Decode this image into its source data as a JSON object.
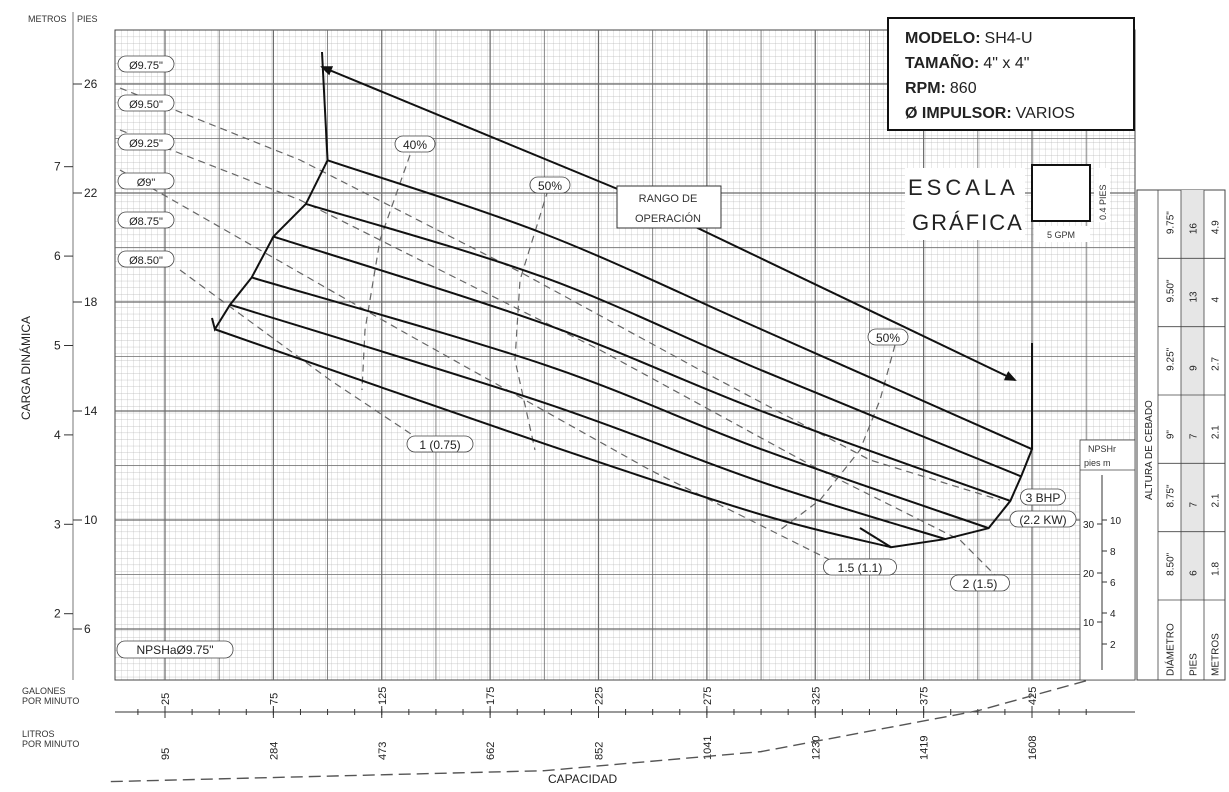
{
  "chart_data": {
    "type": "line",
    "axis": {
      "y_title": "CARGA DINÁMICA",
      "y_meters_header": "METROS",
      "y_feet_header": "PIES",
      "x_title": "CAPACIDAD",
      "x_gpm_label": "GALONES POR MINUTO",
      "x_lpm_label": "LITROS POR MINUTO",
      "ylim_ft": [
        0,
        28
      ],
      "xlim_gpm": [
        0,
        450
      ],
      "y_ft_ticks": [
        "6",
        "10",
        "14",
        "18",
        "22",
        "26"
      ],
      "y_m_ticks": [
        "2",
        "3",
        "4",
        "5",
        "6",
        "7"
      ],
      "x_gpm_ticks": [
        "25",
        "75",
        "125",
        "175",
        "225",
        "275",
        "325",
        "375",
        "425"
      ],
      "x_lpm_ticks": [
        "95",
        "284",
        "473",
        "662",
        "852",
        "1041",
        "1230",
        "1419",
        "1608"
      ],
      "grid": true
    },
    "series": [
      {
        "name": "Ø9.75\"",
        "points": [
          [
            100,
            23.2
          ],
          [
            200,
            20.5
          ],
          [
            300,
            17.0
          ],
          [
            425,
            12.6
          ]
        ]
      },
      {
        "name": "Ø9.50\"",
        "points": [
          [
            90,
            21.6
          ],
          [
            200,
            18.9
          ],
          [
            300,
            15.5
          ],
          [
            420,
            11.6
          ]
        ]
      },
      {
        "name": "Ø9.25\"",
        "points": [
          [
            75,
            20.4
          ],
          [
            200,
            17.2
          ],
          [
            300,
            14.0
          ],
          [
            415,
            10.7
          ]
        ]
      },
      {
        "name": "Ø9\"",
        "points": [
          [
            65,
            18.9
          ],
          [
            200,
            15.7
          ],
          [
            300,
            12.6
          ],
          [
            405,
            9.7
          ]
        ]
      },
      {
        "name": "Ø8.75\"",
        "points": [
          [
            55,
            17.9
          ],
          [
            200,
            14.3
          ],
          [
            300,
            11.4
          ],
          [
            385,
            9.3
          ]
        ]
      },
      {
        "name": "Ø8.50\"",
        "points": [
          [
            48,
            17.0
          ],
          [
            200,
            12.8
          ],
          [
            300,
            10.2
          ],
          [
            360,
            9.0
          ]
        ]
      }
    ],
    "npsh": {
      "name": "NPSHaØ9.75\"",
      "points": [
        [
          0,
          0.4
        ],
        [
          200,
          0.8
        ],
        [
          300,
          1.5
        ],
        [
          400,
          3.0
        ],
        [
          450,
          4.1
        ]
      ]
    },
    "efficiency_labels": [
      "40%",
      "50%",
      "50%"
    ],
    "power_labels": [
      "1 (0.75)",
      "1.5 (1.1)",
      "2 (1.5)",
      "3 BHP",
      "(2.2 KW)"
    ],
    "operating_range_label": [
      "RANGO DE",
      "OPERACIÓN"
    ],
    "impeller_labels": [
      "Ø9.75\"",
      "Ø9.50\"",
      "Ø9.25\"",
      "Ø9\"",
      "Ø8.75\"",
      "Ø8.50\""
    ],
    "graphic_scale": {
      "title_1": "ESCALA",
      "title_2": "GRÁFICA",
      "h_label": "5 GPM",
      "v_label": "0.4 PIES"
    },
    "npsh_scale": {
      "title": "NPSHr",
      "units": "pies   m",
      "ft_ticks": [
        "10",
        "20",
        "30"
      ],
      "m_ticks": [
        "2",
        "4",
        "6",
        "8",
        "10"
      ]
    }
  },
  "model_box": {
    "model_label": "MODELO:",
    "model_value": "SH4-U",
    "size_label": "TAMAÑO:",
    "size_value": "4\" x 4\"",
    "rpm_label": "RPM:",
    "rpm_value": "860",
    "impeller_label": "Ø IMPULSOR:",
    "impeller_value": "VARIOS"
  },
  "priming_table": {
    "title": "ALTURA DE CEBADO",
    "header": [
      "DIÁMETRO",
      "PIES",
      "METROS"
    ],
    "rows": [
      [
        "9.75\"",
        "16",
        "4.9"
      ],
      [
        "9.50\"",
        "13",
        "4"
      ],
      [
        "9.25\"",
        "9",
        "2.7"
      ],
      [
        "9\"",
        "7",
        "2.1"
      ],
      [
        "8.75\"",
        "7",
        "2.1"
      ],
      [
        "8.50\"",
        "6",
        "1.8"
      ]
    ]
  }
}
